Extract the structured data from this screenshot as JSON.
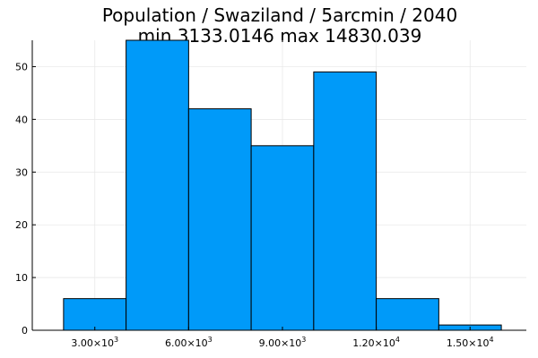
{
  "chart_data": {
    "type": "bar",
    "title": "Population / Swaziland / 5arcmin / 2040",
    "subtitle": "min 3133.0146  max 14830.039",
    "xlabel": "",
    "ylabel": "",
    "bin_edges": [
      2000,
      4000,
      6000,
      8000,
      10000,
      12000,
      14000,
      16000
    ],
    "values": [
      6,
      55,
      42,
      35,
      49,
      6,
      1
    ],
    "xlim": [
      1000,
      16800
    ],
    "ylim": [
      0,
      55
    ],
    "x_ticks": [
      {
        "value": 3000,
        "mantissa": "3.00×10",
        "exp": "3"
      },
      {
        "value": 6000,
        "mantissa": "6.00×10",
        "exp": "3"
      },
      {
        "value": 9000,
        "mantissa": "9.00×10",
        "exp": "3"
      },
      {
        "value": 12000,
        "mantissa": "1.20×10",
        "exp": "4"
      },
      {
        "value": 15000,
        "mantissa": "1.50×10",
        "exp": "4"
      }
    ],
    "y_ticks": [
      0,
      10,
      20,
      30,
      40,
      50
    ],
    "grid": true,
    "bar_color": "#009af9",
    "edge_color": "#000000"
  }
}
